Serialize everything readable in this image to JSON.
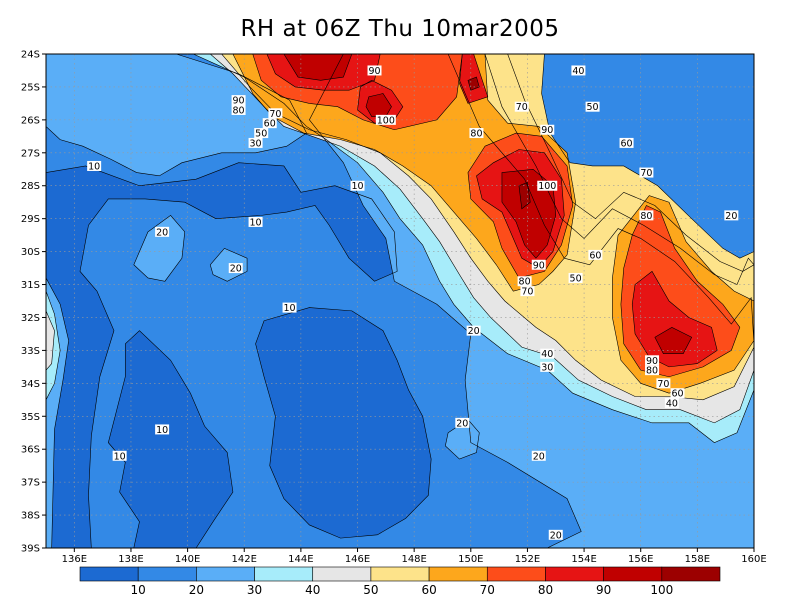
{
  "title": "RH at 06Z Thu 10mar2005",
  "lat_labels": [
    "24S",
    "25S",
    "26S",
    "27S",
    "28S",
    "29S",
    "30S",
    "31S",
    "32S",
    "33S",
    "34S",
    "35S",
    "36S",
    "37S",
    "38S",
    "39S"
  ],
  "lon_labels": [
    "136E",
    "138E",
    "140E",
    "142E",
    "144E",
    "146E",
    "148E",
    "150E",
    "152E",
    "154E",
    "156E",
    "158E",
    "160E"
  ],
  "colorbar": {
    "colors": [
      "#1c6ad2",
      "#3389e6",
      "#5aaef7",
      "#a7ecfa",
      "#e6e6e6",
      "#fde38a",
      "#fda71c",
      "#fd4d1a",
      "#e61414",
      "#c00000",
      "#9c0000"
    ],
    "labels": [
      "10",
      "20",
      "30",
      "40",
      "50",
      "60",
      "70",
      "80",
      "90",
      "100"
    ]
  },
  "contour_labels": [
    {
      "text": "10",
      "lat": -27.4,
      "lon": 136.7
    },
    {
      "text": "10",
      "lat": -28.0,
      "lon": 146.0
    },
    {
      "text": "10",
      "lat": -29.1,
      "lon": 142.4
    },
    {
      "text": "10",
      "lat": -31.7,
      "lon": 143.6
    },
    {
      "text": "10",
      "lat": -35.4,
      "lon": 139.1
    },
    {
      "text": "10",
      "lat": -36.2,
      "lon": 137.6
    },
    {
      "text": "20",
      "lat": -29.4,
      "lon": 139.1
    },
    {
      "text": "20",
      "lat": -30.5,
      "lon": 141.7
    },
    {
      "text": "20",
      "lat": -32.4,
      "lon": 150.1
    },
    {
      "text": "20",
      "lat": -35.2,
      "lon": 149.7
    },
    {
      "text": "20",
      "lat": -36.2,
      "lon": 152.4
    },
    {
      "text": "20",
      "lat": -38.6,
      "lon": 153.0
    },
    {
      "text": "20",
      "lat": -28.9,
      "lon": 159.2
    },
    {
      "text": "30",
      "lat": -33.5,
      "lon": 152.7
    },
    {
      "text": "30",
      "lat": -26.7,
      "lon": 142.4
    },
    {
      "text": "40",
      "lat": -33.1,
      "lon": 152.7
    },
    {
      "text": "40",
      "lat": -24.5,
      "lon": 153.8
    },
    {
      "text": "40",
      "lat": -34.6,
      "lon": 157.1
    },
    {
      "text": "50",
      "lat": -30.8,
      "lon": 153.7
    },
    {
      "text": "50",
      "lat": -25.6,
      "lon": 154.3
    },
    {
      "text": "50",
      "lat": -26.4,
      "lon": 142.6
    },
    {
      "text": "60",
      "lat": -30.1,
      "lon": 154.4
    },
    {
      "text": "60",
      "lat": -26.7,
      "lon": 155.5
    },
    {
      "text": "60",
      "lat": -34.3,
      "lon": 157.3
    },
    {
      "text": "60",
      "lat": -26.1,
      "lon": 142.9
    },
    {
      "text": "70",
      "lat": -31.2,
      "lon": 152.0
    },
    {
      "text": "70",
      "lat": -25.6,
      "lon": 151.8
    },
    {
      "text": "70",
      "lat": -27.6,
      "lon": 156.2
    },
    {
      "text": "70",
      "lat": -34.0,
      "lon": 156.8
    },
    {
      "text": "70",
      "lat": -25.8,
      "lon": 143.1
    },
    {
      "text": "80",
      "lat": -30.9,
      "lon": 151.9
    },
    {
      "text": "80",
      "lat": -26.4,
      "lon": 150.2
    },
    {
      "text": "80",
      "lat": -28.9,
      "lon": 156.2
    },
    {
      "text": "80",
      "lat": -33.6,
      "lon": 156.4
    },
    {
      "text": "80",
      "lat": -25.7,
      "lon": 141.8
    },
    {
      "text": "90",
      "lat": -30.4,
      "lon": 152.4
    },
    {
      "text": "90",
      "lat": -26.3,
      "lon": 152.7
    },
    {
      "text": "90",
      "lat": -33.3,
      "lon": 156.4
    },
    {
      "text": "90",
      "lat": -24.5,
      "lon": 146.6
    },
    {
      "text": "90",
      "lat": -25.4,
      "lon": 141.8
    },
    {
      "text": "100",
      "lat": -28.0,
      "lon": 152.7
    },
    {
      "text": "100",
      "lat": -26.0,
      "lon": 147.0
    }
  ]
}
